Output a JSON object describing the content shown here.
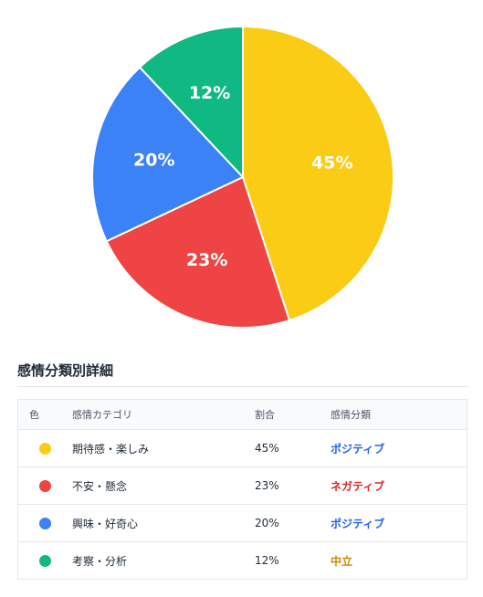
{
  "chart_data": {
    "type": "pie",
    "categories": [
      "期待感・楽しみ",
      "不安・懸念",
      "興味・好奇心",
      "考察・分析"
    ],
    "values": [
      45,
      23,
      20,
      12
    ],
    "labels": [
      "45%",
      "23%",
      "20%",
      "12%"
    ],
    "colors": [
      "#facc15",
      "#ef4444",
      "#3b82f6",
      "#10b981"
    ]
  },
  "section_title": "感情分類別詳細",
  "table": {
    "headers": [
      "色",
      "感情カテゴリ",
      "割合",
      "感情分類"
    ],
    "rows": [
      {
        "category": "期待感・楽しみ",
        "ratio": "45%",
        "classification": "ポジティブ",
        "dot_color": "#facc15",
        "class_color": "#2563eb"
      },
      {
        "category": "不安・懸念",
        "ratio": "23%",
        "classification": "ネガティブ",
        "dot_color": "#ef4444",
        "class_color": "#dc2626"
      },
      {
        "category": "興味・好奇心",
        "ratio": "20%",
        "classification": "ポジティブ",
        "dot_color": "#3b82f6",
        "class_color": "#2563eb"
      },
      {
        "category": "考察・分析",
        "ratio": "12%",
        "classification": "中立",
        "dot_color": "#10b981",
        "class_color": "#ca8a04"
      }
    ]
  }
}
